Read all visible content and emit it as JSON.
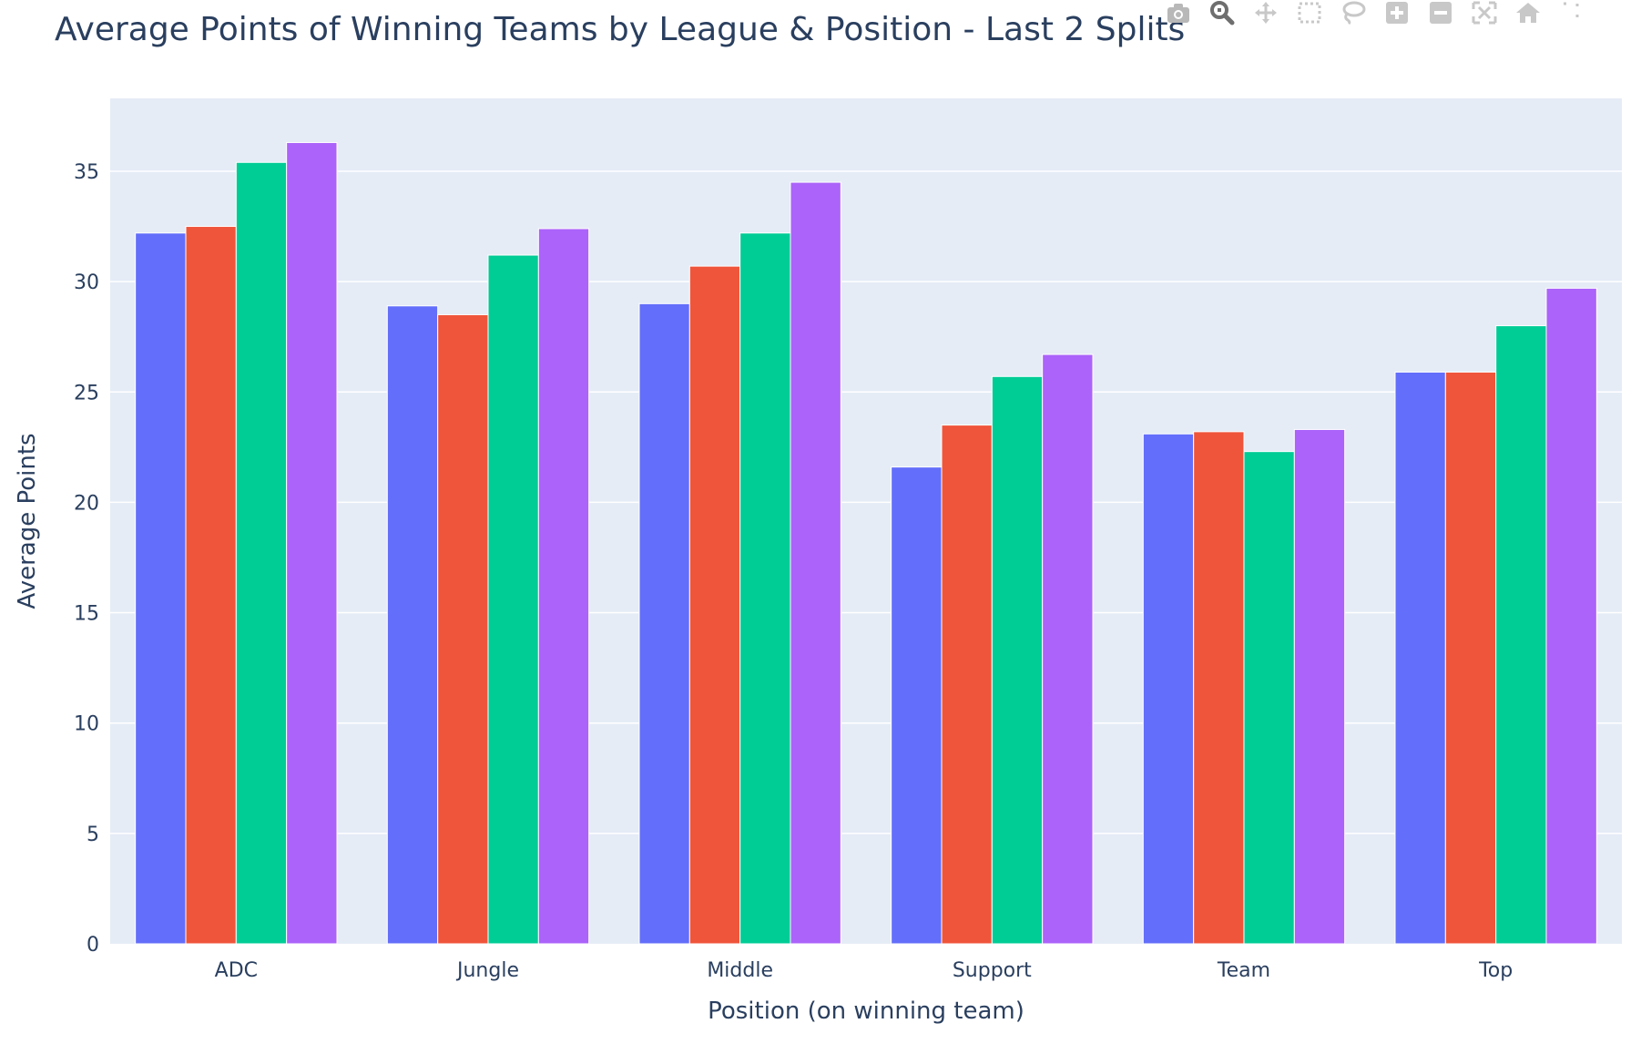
{
  "chart_data": {
    "type": "bar",
    "title": "Average Points of Winning Teams by League & Position - Last 2 Splits",
    "xlabel": "Position (on winning team)",
    "ylabel": "Average Points",
    "categories": [
      "ADC",
      "Jungle",
      "Middle",
      "Support",
      "Team",
      "Top"
    ],
    "ylim": [
      0,
      38.3
    ],
    "yticks": [
      0,
      5,
      10,
      15,
      20,
      25,
      30,
      35
    ],
    "grid": true,
    "legend": "none",
    "series": [
      {
        "color": "#636efa",
        "values": [
          32.2,
          28.9,
          29.0,
          21.6,
          23.1,
          25.9
        ]
      },
      {
        "color": "#ef553b",
        "values": [
          32.5,
          28.5,
          30.7,
          23.5,
          23.2,
          25.9
        ]
      },
      {
        "color": "#00cc96",
        "values": [
          35.4,
          31.2,
          32.2,
          25.7,
          22.3,
          28.0
        ]
      },
      {
        "color": "#ab63fa",
        "values": [
          36.3,
          32.4,
          34.5,
          26.7,
          23.3,
          29.7
        ]
      }
    ]
  },
  "modebar": {
    "icons": [
      "camera-icon",
      "zoom-icon",
      "pan-icon",
      "box-select-icon",
      "lasso-icon",
      "zoom-in-icon",
      "zoom-out-icon",
      "autoscale-icon",
      "reset-axes-icon",
      "spike-lines-icon"
    ]
  },
  "colors": {
    "plot_bg": "#e5ecf6",
    "text": "#2a3f5f",
    "grid": "#ffffff"
  }
}
